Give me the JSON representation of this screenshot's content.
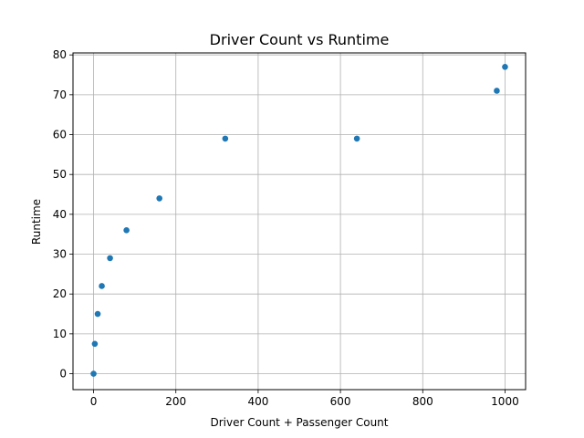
{
  "chart_data": {
    "type": "scatter",
    "title": "Driver Count vs Runtime",
    "xlabel": "Driver Count + Passenger Count",
    "ylabel": "Runtime",
    "xlim": [
      -50,
      1050
    ],
    "ylim": [
      -4,
      80.5
    ],
    "xticks": [
      0,
      200,
      400,
      600,
      800,
      1000
    ],
    "yticks": [
      0,
      10,
      20,
      30,
      40,
      50,
      60,
      70,
      80
    ],
    "grid": true,
    "marker_color": "#1f77b4",
    "points": [
      {
        "x": 0,
        "y": 0
      },
      {
        "x": 3,
        "y": 7.5
      },
      {
        "x": 10,
        "y": 15
      },
      {
        "x": 20,
        "y": 22
      },
      {
        "x": 40,
        "y": 29
      },
      {
        "x": 80,
        "y": 36
      },
      {
        "x": 160,
        "y": 44
      },
      {
        "x": 320,
        "y": 59
      },
      {
        "x": 640,
        "y": 59
      },
      {
        "x": 980,
        "y": 71
      },
      {
        "x": 1000,
        "y": 77
      }
    ]
  }
}
